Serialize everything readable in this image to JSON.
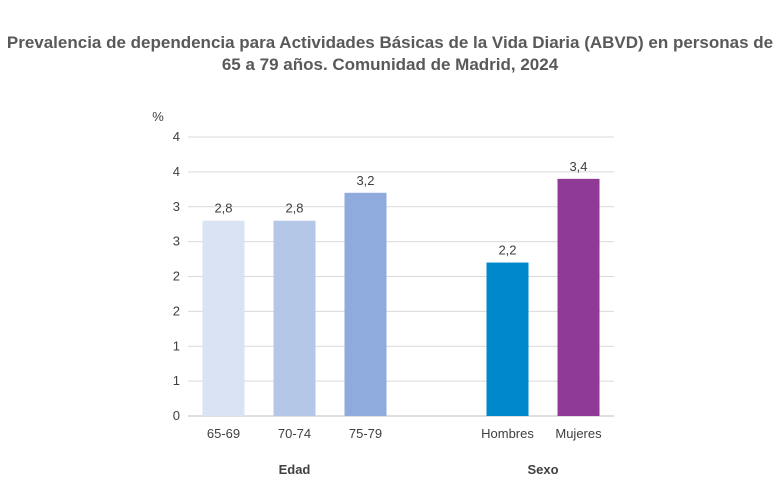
{
  "chart_data": {
    "type": "bar",
    "title": "Prevalencia de dependencia para Actividades Básicas de la Vida Diaria (ABVD) en personas de 65 a 79 años. Comunidad de Madrid, 2024",
    "ylabel": "%",
    "ylim": [
      0,
      4
    ],
    "yticks": [
      0,
      0.5,
      1,
      1.5,
      2,
      2.5,
      3,
      3.5,
      4
    ],
    "ytick_labels": [
      "0",
      "1",
      "1",
      "2",
      "2",
      "3",
      "3",
      "4",
      "4"
    ],
    "grid": true,
    "categories": [
      "65-69",
      "70-74",
      "75-79",
      "",
      "Hombres",
      "Mujeres"
    ],
    "values": [
      2.8,
      2.8,
      3.2,
      null,
      2.2,
      3.4
    ],
    "data_labels": [
      "2,8",
      "2,8",
      "3,2",
      "",
      "2,2",
      "3,4"
    ],
    "colors": [
      "#dae3f3",
      "#b4c7e7",
      "#8faadc",
      "",
      "#0088cc",
      "#8e3a96"
    ],
    "groups": [
      {
        "label": "Edad",
        "categories": [
          "65-69",
          "70-74",
          "75-79"
        ]
      },
      {
        "label": "Sexo",
        "categories": [
          "Hombres",
          "Mujeres"
        ]
      }
    ]
  }
}
